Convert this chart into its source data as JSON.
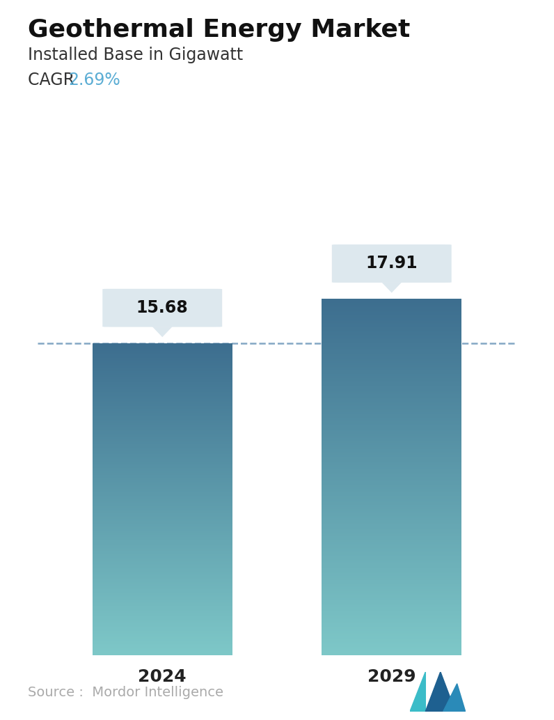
{
  "title": "Geothermal Energy Market",
  "subtitle": "Installed Base in Gigawatt",
  "cagr_label": "CAGR ",
  "cagr_value": "2.69%",
  "cagr_color": "#5badd4",
  "categories": [
    "2024",
    "2029"
  ],
  "values": [
    15.68,
    17.91
  ],
  "bar_top_color": "#3d6e8f",
  "bar_bottom_color": "#7ec8c8",
  "dashed_line_color": "#5a8ab0",
  "dashed_line_y": 15.68,
  "label_box_color": "#dde8ee",
  "label_text_color": "#111111",
  "source_text": "Source :  Mordor Intelligence",
  "source_color": "#aaaaaa",
  "background_color": "#ffffff",
  "title_fontsize": 26,
  "subtitle_fontsize": 17,
  "cagr_fontsize": 17,
  "bar_label_fontsize": 17,
  "xlabel_fontsize": 18,
  "source_fontsize": 14,
  "ylim": [
    0,
    21
  ],
  "bar_width": 0.28,
  "x_positions": [
    0.27,
    0.73
  ]
}
